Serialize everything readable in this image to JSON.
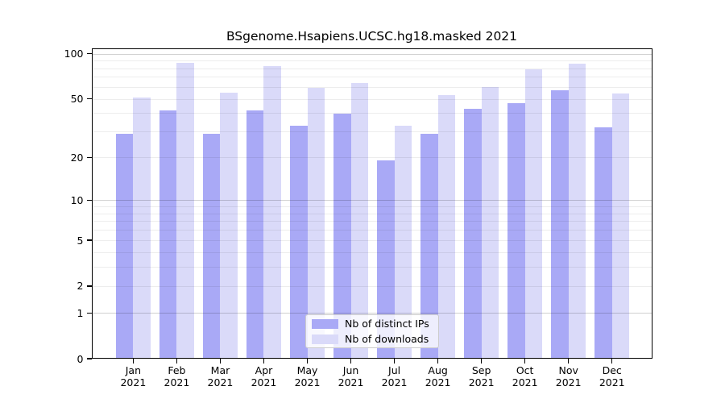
{
  "chart_data": {
    "type": "bar",
    "title": "BSgenome.Hsapiens.UCSC.hg18.masked 2021",
    "categories": [
      "Jan",
      "Feb",
      "Mar",
      "Apr",
      "May",
      "Jun",
      "Jul",
      "Aug",
      "Sep",
      "Oct",
      "Nov",
      "Dec"
    ],
    "year_label": "2021",
    "series": [
      {
        "name": "Nb of distinct IPs",
        "color": "#a9a9f6",
        "values": [
          29,
          42,
          29,
          42,
          33,
          40,
          19,
          29,
          43,
          47,
          57,
          32
        ]
      },
      {
        "name": "Nb of downloads",
        "color": "#dadaf9",
        "values": [
          51,
          87,
          55,
          83,
          59,
          64,
          33,
          53,
          60,
          79,
          86,
          54
        ]
      }
    ],
    "y_axis": {
      "scale": "log1p",
      "ylim": [
        0,
        100
      ],
      "tick_labels": [
        100,
        50,
        20,
        10,
        5,
        2,
        1,
        0
      ],
      "major_gridlines": [
        1,
        10,
        100
      ],
      "minor_gridlines": [
        2,
        3,
        4,
        5,
        6,
        7,
        8,
        9,
        20,
        30,
        40,
        50,
        60,
        70,
        80,
        90
      ]
    },
    "xlabel": "",
    "ylabel": "",
    "grid": true,
    "legend_position": "lower center"
  }
}
